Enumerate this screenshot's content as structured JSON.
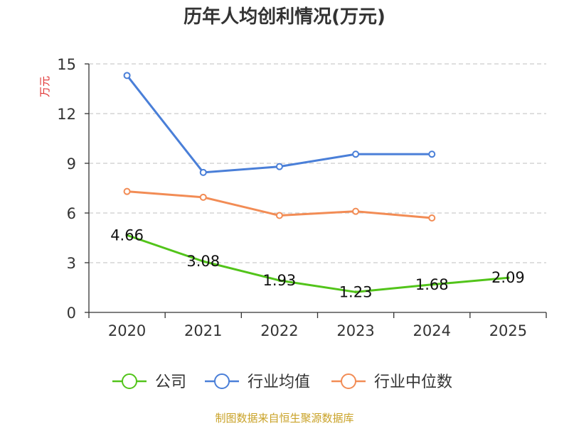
{
  "colors": {
    "company": "#52c41a",
    "industry_avg": "#4a7fd8",
    "industry_median": "#f28c55",
    "unit_label": "#e03030",
    "source": "#c9a227"
  },
  "chart_data": {
    "type": "line",
    "title": "历年人均创利情况(万元)",
    "ylabel": "万元",
    "xlabel": "",
    "categories": [
      "2020",
      "2021",
      "2022",
      "2023",
      "2024",
      "2025"
    ],
    "ylim": [
      0,
      15
    ],
    "yticks": [
      0,
      3,
      6,
      9,
      12,
      15
    ],
    "series": [
      {
        "key": "company",
        "name": "公司",
        "values": [
          4.66,
          3.08,
          1.93,
          1.23,
          1.68,
          2.09
        ],
        "labels": [
          "4.66",
          "3.08",
          "1.93",
          "1.23",
          "1.68",
          "2.09"
        ],
        "show_labels": true
      },
      {
        "key": "industry_avg",
        "name": "行业均值",
        "values": [
          14.3,
          8.45,
          8.8,
          9.55,
          9.55,
          null
        ],
        "show_labels": false
      },
      {
        "key": "industry_median",
        "name": "行业中位数",
        "values": [
          7.3,
          6.95,
          5.85,
          6.1,
          5.7,
          null
        ],
        "show_labels": false
      }
    ],
    "grid": true,
    "legend_position": "bottom"
  },
  "source_text": "制图数据来自恒生聚源数据库"
}
